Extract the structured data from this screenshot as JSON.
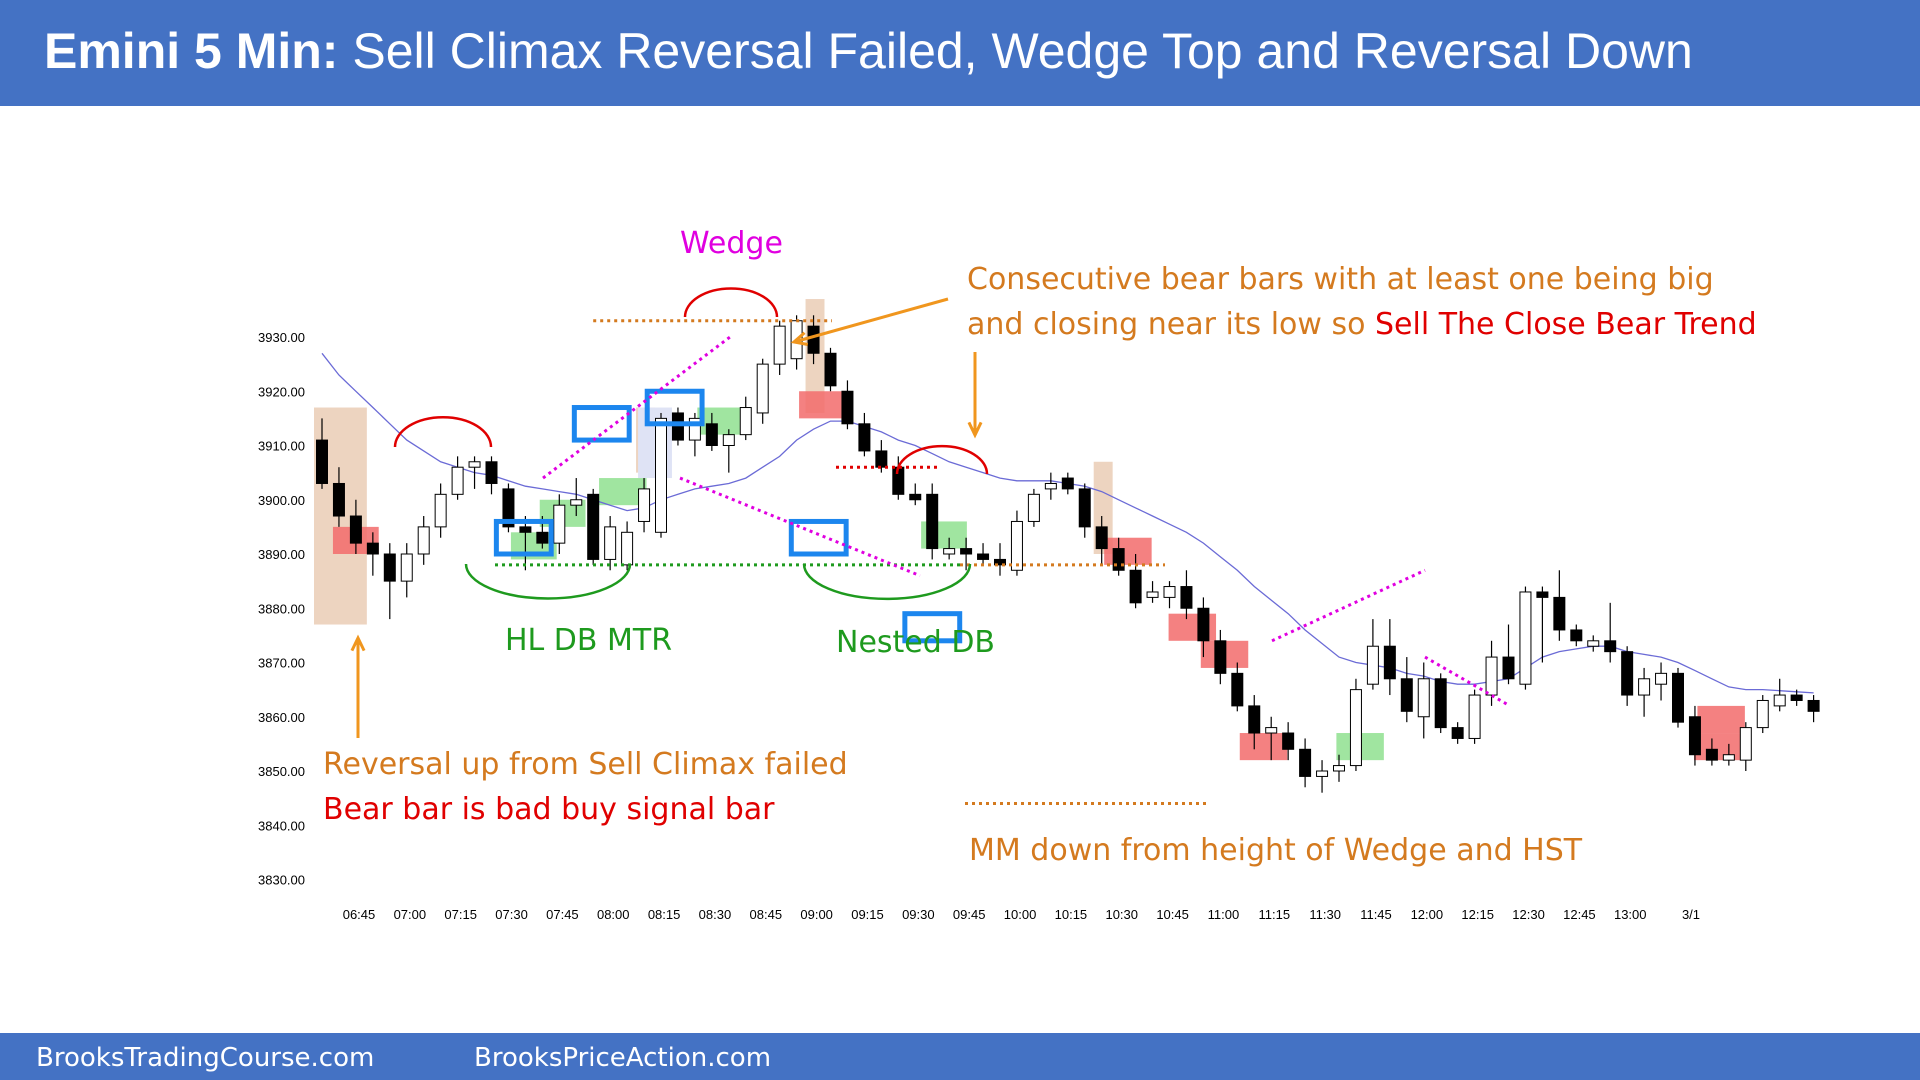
{
  "header": {
    "title_bold": "Emini 5 Min:",
    "title_rest": "Sell Climax Reversal Failed, Wedge Top and Reversal Down"
  },
  "footer": {
    "link1": "BrooksTradingCourse.com",
    "link2": "BrooksPriceAction.com"
  },
  "colors": {
    "header_bg": "#4472c4",
    "bull_body": "#ffffff",
    "bear_body": "#000000",
    "ema": "#6b6bd6",
    "annotation_orange": "#d47a1f",
    "annotation_red": "#e00000",
    "annotation_green": "#1e9a1e",
    "annotation_magenta": "#e000e0",
    "signal_box_blue": "#1c86ee",
    "buy_zone_green": "#8fe08f",
    "sell_zone_red": "#f26b6b",
    "context_shade": "#e8c9b0"
  },
  "chart_data": {
    "type": "candlestick",
    "title": "",
    "ylim": [
      3830,
      3935
    ],
    "y_ticks": [
      "3930.00",
      "3920.00",
      "3910.00",
      "3900.00",
      "3890.00",
      "3880.00",
      "3870.00",
      "3860.00",
      "3850.00",
      "3840.00",
      "3830.00"
    ],
    "x_ticks": [
      "06:45",
      "07:00",
      "07:15",
      "07:30",
      "07:45",
      "08:00",
      "08:15",
      "08:30",
      "08:45",
      "09:00",
      "09:15",
      "09:30",
      "09:45",
      "10:00",
      "10:15",
      "10:30",
      "10:45",
      "11:00",
      "11:15",
      "11:30",
      "11:45",
      "12:00",
      "12:15",
      "12:30",
      "12:45",
      "13:00",
      "3/1"
    ],
    "bars": [
      {
        "o": 3911,
        "h": 3915,
        "l": 3902,
        "c": 3903
      },
      {
        "o": 3903,
        "h": 3906,
        "l": 3895,
        "c": 3897
      },
      {
        "o": 3897,
        "h": 3900,
        "l": 3890,
        "c": 3892
      },
      {
        "o": 3892,
        "h": 3894,
        "l": 3886,
        "c": 3890
      },
      {
        "o": 3890,
        "h": 3892,
        "l": 3878,
        "c": 3885
      },
      {
        "o": 3885,
        "h": 3892,
        "l": 3882,
        "c": 3890
      },
      {
        "o": 3890,
        "h": 3897,
        "l": 3888,
        "c": 3895
      },
      {
        "o": 3895,
        "h": 3903,
        "l": 3893,
        "c": 3901
      },
      {
        "o": 3901,
        "h": 3908,
        "l": 3900,
        "c": 3906
      },
      {
        "o": 3906,
        "h": 3908,
        "l": 3902,
        "c": 3907
      },
      {
        "o": 3907,
        "h": 3908,
        "l": 3901,
        "c": 3903
      },
      {
        "o": 3902,
        "h": 3903,
        "l": 3894,
        "c": 3895
      },
      {
        "o": 3895,
        "h": 3897,
        "l": 3887,
        "c": 3894
      },
      {
        "o": 3894,
        "h": 3897,
        "l": 3891,
        "c": 3892
      },
      {
        "o": 3892,
        "h": 3901,
        "l": 3890,
        "c": 3899
      },
      {
        "o": 3899,
        "h": 3904,
        "l": 3897,
        "c": 3900
      },
      {
        "o": 3901,
        "h": 3902,
        "l": 3888,
        "c": 3889
      },
      {
        "o": 3889,
        "h": 3897,
        "l": 3887,
        "c": 3895
      },
      {
        "o": 3888,
        "h": 3896,
        "l": 3887,
        "c": 3894
      },
      {
        "o": 3896,
        "h": 3904,
        "l": 3894,
        "c": 3902
      },
      {
        "o": 3894,
        "h": 3916,
        "l": 3893,
        "c": 3915
      },
      {
        "o": 3916,
        "h": 3917,
        "l": 3910,
        "c": 3911
      },
      {
        "o": 3911,
        "h": 3916,
        "l": 3908,
        "c": 3915
      },
      {
        "o": 3914,
        "h": 3916,
        "l": 3909,
        "c": 3910
      },
      {
        "o": 3910,
        "h": 3913,
        "l": 3905,
        "c": 3912
      },
      {
        "o": 3912,
        "h": 3919,
        "l": 3911,
        "c": 3917
      },
      {
        "o": 3916,
        "h": 3926,
        "l": 3914,
        "c": 3925
      },
      {
        "o": 3925,
        "h": 3933,
        "l": 3923,
        "c": 3932
      },
      {
        "o": 3926,
        "h": 3934,
        "l": 3924,
        "c": 3933
      },
      {
        "o": 3932,
        "h": 3934,
        "l": 3925,
        "c": 3927
      },
      {
        "o": 3927,
        "h": 3928,
        "l": 3920,
        "c": 3921
      },
      {
        "o": 3920,
        "h": 3922,
        "l": 3913,
        "c": 3914
      },
      {
        "o": 3914,
        "h": 3916,
        "l": 3908,
        "c": 3909
      },
      {
        "o": 3909,
        "h": 3911,
        "l": 3905,
        "c": 3906
      },
      {
        "o": 3906,
        "h": 3908,
        "l": 3900,
        "c": 3901
      },
      {
        "o": 3901,
        "h": 3903,
        "l": 3899,
        "c": 3900
      },
      {
        "o": 3901,
        "h": 3903,
        "l": 3889,
        "c": 3891
      },
      {
        "o": 3890,
        "h": 3893,
        "l": 3889,
        "c": 3891
      },
      {
        "o": 3891,
        "h": 3893,
        "l": 3887,
        "c": 3890
      },
      {
        "o": 3890,
        "h": 3892,
        "l": 3888,
        "c": 3889
      },
      {
        "o": 3889,
        "h": 3892,
        "l": 3886,
        "c": 3888
      },
      {
        "o": 3887,
        "h": 3898,
        "l": 3886,
        "c": 3896
      },
      {
        "o": 3896,
        "h": 3902,
        "l": 3895,
        "c": 3901
      },
      {
        "o": 3902,
        "h": 3905,
        "l": 3900,
        "c": 3903
      },
      {
        "o": 3904,
        "h": 3905,
        "l": 3901,
        "c": 3902
      },
      {
        "o": 3902,
        "h": 3903,
        "l": 3893,
        "c": 3895
      },
      {
        "o": 3895,
        "h": 3897,
        "l": 3888,
        "c": 3891
      },
      {
        "o": 3891,
        "h": 3893,
        "l": 3886,
        "c": 3887
      },
      {
        "o": 3887,
        "h": 3890,
        "l": 3880,
        "c": 3881
      },
      {
        "o": 3882,
        "h": 3885,
        "l": 3881,
        "c": 3883
      },
      {
        "o": 3882,
        "h": 3885,
        "l": 3880,
        "c": 3884
      },
      {
        "o": 3884,
        "h": 3887,
        "l": 3878,
        "c": 3880
      },
      {
        "o": 3880,
        "h": 3882,
        "l": 3871,
        "c": 3874
      },
      {
        "o": 3874,
        "h": 3876,
        "l": 3866,
        "c": 3868
      },
      {
        "o": 3868,
        "h": 3870,
        "l": 3861,
        "c": 3862
      },
      {
        "o": 3862,
        "h": 3864,
        "l": 3854,
        "c": 3857
      },
      {
        "o": 3857,
        "h": 3860,
        "l": 3852,
        "c": 3858
      },
      {
        "o": 3857,
        "h": 3859,
        "l": 3852,
        "c": 3854
      },
      {
        "o": 3854,
        "h": 3856,
        "l": 3847,
        "c": 3849
      },
      {
        "o": 3849,
        "h": 3852,
        "l": 3846,
        "c": 3850
      },
      {
        "o": 3850,
        "h": 3853,
        "l": 3848,
        "c": 3851
      },
      {
        "o": 3851,
        "h": 3867,
        "l": 3850,
        "c": 3865
      },
      {
        "o": 3866,
        "h": 3878,
        "l": 3865,
        "c": 3873
      },
      {
        "o": 3873,
        "h": 3878,
        "l": 3864,
        "c": 3867
      },
      {
        "o": 3867,
        "h": 3871,
        "l": 3859,
        "c": 3861
      },
      {
        "o": 3860,
        "h": 3870,
        "l": 3856,
        "c": 3867
      },
      {
        "o": 3867,
        "h": 3868,
        "l": 3857,
        "c": 3858
      },
      {
        "o": 3858,
        "h": 3859,
        "l": 3855,
        "c": 3856
      },
      {
        "o": 3856,
        "h": 3865,
        "l": 3855,
        "c": 3864
      },
      {
        "o": 3864,
        "h": 3874,
        "l": 3862,
        "c": 3871
      },
      {
        "o": 3871,
        "h": 3877,
        "l": 3866,
        "c": 3867
      },
      {
        "o": 3866,
        "h": 3884,
        "l": 3865,
        "c": 3883
      },
      {
        "o": 3883,
        "h": 3884,
        "l": 3870,
        "c": 3882
      },
      {
        "o": 3882,
        "h": 3887,
        "l": 3874,
        "c": 3876
      },
      {
        "o": 3876,
        "h": 3877,
        "l": 3873,
        "c": 3874
      },
      {
        "o": 3873,
        "h": 3875,
        "l": 3872,
        "c": 3874
      },
      {
        "o": 3874,
        "h": 3881,
        "l": 3870,
        "c": 3872
      },
      {
        "o": 3872,
        "h": 3873,
        "l": 3862,
        "c": 3864
      },
      {
        "o": 3864,
        "h": 3869,
        "l": 3860,
        "c": 3867
      },
      {
        "o": 3866,
        "h": 3870,
        "l": 3863,
        "c": 3868
      },
      {
        "o": 3868,
        "h": 3869,
        "l": 3858,
        "c": 3859
      },
      {
        "o": 3860,
        "h": 3862,
        "l": 3851,
        "c": 3853
      },
      {
        "o": 3854,
        "h": 3856,
        "l": 3851,
        "c": 3852
      },
      {
        "o": 3852,
        "h": 3855,
        "l": 3851,
        "c": 3853
      },
      {
        "o": 3852,
        "h": 3859,
        "l": 3850,
        "c": 3858
      },
      {
        "o": 3858,
        "h": 3864,
        "l": 3857,
        "c": 3863
      },
      {
        "o": 3862,
        "h": 3867,
        "l": 3861,
        "c": 3864
      },
      {
        "o": 3864,
        "h": 3865,
        "l": 3862,
        "c": 3863
      },
      {
        "o": 3863,
        "h": 3864,
        "l": 3859,
        "c": 3861
      }
    ],
    "ema": [
      3927,
      3923,
      3920,
      3917,
      3914,
      3911,
      3909,
      3907,
      3906,
      3905,
      3904.5,
      3903.5,
      3902.5,
      3902,
      3901.5,
      3901,
      3900,
      3899,
      3898,
      3898.5,
      3900,
      3901,
      3902,
      3902.5,
      3903,
      3904,
      3906,
      3908,
      3911,
      3913,
      3914.5,
      3914.5,
      3913.5,
      3912.5,
      3911,
      3910,
      3908.5,
      3907,
      3906,
      3905,
      3904,
      3903.5,
      3903.5,
      3903.5,
      3903,
      3902.5,
      3901.5,
      3900,
      3898.5,
      3897,
      3895.5,
      3894,
      3892,
      3889.5,
      3887,
      3884,
      3881.5,
      3879,
      3876,
      3873.5,
      3871,
      3870,
      3869.5,
      3869,
      3868,
      3867.5,
      3866.5,
      3866,
      3866,
      3866.5,
      3867,
      3869,
      3871,
      3872,
      3872.5,
      3873,
      3873,
      3872,
      3871.5,
      3871,
      3870,
      3868.5,
      3867,
      3865.5,
      3865,
      3865,
      3864.8,
      3864.6,
      3864.4
    ],
    "annotations": [
      {
        "text": "Wedge"
      },
      {
        "text": "Consecutive bear bars with at least one being big"
      },
      {
        "text": "and closing near its low so"
      },
      {
        "text": "Sell The Close Bear Trend"
      },
      {
        "text": "HL DB MTR"
      },
      {
        "text": "Nested DB"
      },
      {
        "text": "Reversal up from Sell Climax failed"
      },
      {
        "text": "Bear bar is bad buy signal bar"
      },
      {
        "text": "MM down from height of Wedge and HST"
      }
    ]
  }
}
